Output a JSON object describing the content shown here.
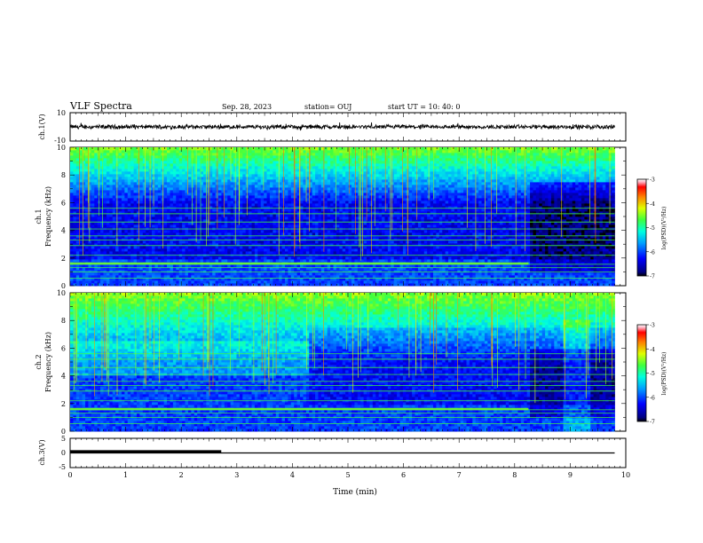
{
  "header": {
    "title": "VLF Spectra",
    "date": "Sep. 28, 2023",
    "station": "station= OUJ",
    "start": "start  UT =   10: 40: 0"
  },
  "chart_data": [
    {
      "type": "line",
      "panel": "ch1-waveform",
      "ylabel": "ch.1(V)",
      "ylim": [
        -10,
        10
      ],
      "ytick_labels": [
        "10",
        "-10"
      ],
      "xlim": [
        0,
        10
      ],
      "signal": {
        "baseline": 0,
        "amplitude_range": [
          -2,
          2
        ],
        "x_end": 9.8
      }
    },
    {
      "type": "heatmap",
      "panel": "ch1-spectrogram",
      "ylabel": "ch.1\nFrequency (kHz)",
      "ylim": [
        0,
        10
      ],
      "yticks": [
        0,
        2,
        4,
        6,
        8,
        10
      ],
      "xlim": [
        0,
        10
      ],
      "data_x_end": 9.8,
      "colorbar": {
        "label": "log(PSD)(V²/Hz)",
        "range": [
          -7,
          -3
        ],
        "ticks": [
          -3,
          -4,
          -5,
          -6,
          -7
        ]
      },
      "segment_change_at_min": 8.25
    },
    {
      "type": "heatmap",
      "panel": "ch2-spectrogram",
      "ylabel": "ch.2\nFrequency (kHz)",
      "ylim": [
        0,
        10
      ],
      "yticks": [
        0,
        2,
        4,
        6,
        8,
        10
      ],
      "xlim": [
        0,
        10
      ],
      "data_x_end": 9.8,
      "colorbar": {
        "label": "log(PSD)(V²/Hz)",
        "range": [
          -7,
          -3
        ],
        "ticks": [
          -3,
          -4,
          -5,
          -6,
          -7
        ]
      },
      "segment_change_at_min": 8.25
    },
    {
      "type": "line",
      "panel": "ch3-waveform",
      "ylabel": "ch.3(V)",
      "ylim": [
        -5,
        5
      ],
      "ytick_labels": [
        "5",
        "0",
        "-5"
      ],
      "xlim": [
        0,
        10
      ],
      "xlabel": "Time (min)",
      "xticks": [
        0,
        1,
        2,
        3,
        4,
        5,
        6,
        7,
        8,
        9,
        10
      ],
      "series": [
        {
          "values_x": [
            0,
            9.8
          ],
          "values_y": [
            0,
            0
          ]
        },
        {
          "thick_segment_x": [
            0,
            2.72
          ],
          "thick_segment_y": 0.5
        }
      ]
    }
  ]
}
